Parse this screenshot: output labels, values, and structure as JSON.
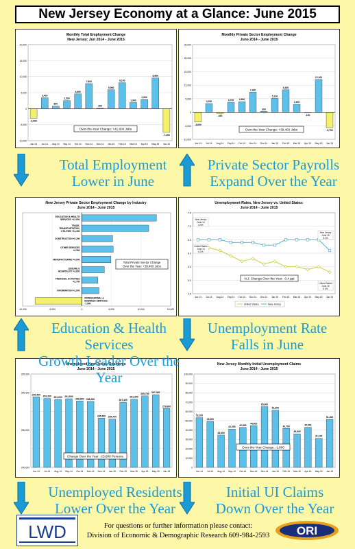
{
  "header": {
    "title": "New Jersey Economy at a Glance: June 2015"
  },
  "captions": {
    "p1": [
      "Total Employment",
      "Lower in June"
    ],
    "p2": [
      "Private Sector Payrolls",
      "Expand Over the Year"
    ],
    "p3": [
      "Education & Health Services",
      "Growth Leader Over the Year"
    ],
    "p4": [
      "Unemployment Rate",
      "Falls in June"
    ],
    "p5": [
      "Unemployed Residents",
      "Lower Over the Year"
    ],
    "p6": [
      "Initial UI Claims",
      "Down Over the Year"
    ]
  },
  "footer": {
    "line1": "For questions or further information please contact:",
    "line2": "Division of Economic & Demographic Research 609-984-2593",
    "logo_left": "LWD",
    "logo_right": "ORI"
  },
  "colors": {
    "bar": "#5bc0ea",
    "highlight": "#f4f06a",
    "us": "#c8c82a",
    "nj": "#3aa8d8",
    "caption": "#1a9bd6",
    "background": "#fdf7a8"
  },
  "chart_data": [
    {
      "type": "bar",
      "title": "Monthly Total Employment Change",
      "subtitle": "New Jersey: Jun 2014 - June 2015",
      "categories": [
        "Jun-14",
        "Jul-14",
        "Aug-14",
        "Sep-14",
        "Oct-14",
        "Nov-14",
        "Dec-14",
        "Jan-15",
        "Feb-15",
        "Mar-15",
        "Apr-15",
        "May-15",
        "Jun-15"
      ],
      "values": [
        -3000,
        3400,
        800,
        2500,
        4600,
        7800,
        200,
        5900,
        8100,
        1900,
        2900,
        9600,
        -7400
      ],
      "labels": [
        "-3,000",
        "3,400",
        "800",
        "2,500",
        "4,600",
        "7,800",
        "200",
        "5,900",
        "8,100",
        "1,900",
        "2,900",
        "9,600",
        "-7,400"
      ],
      "yticks": [
        -10000,
        -5000,
        0,
        5000,
        10000,
        15000,
        20000
      ],
      "ytick_labels": [
        "-10,000",
        "-5,000",
        "0",
        "5,000",
        "10,000",
        "15,000",
        "20,000"
      ],
      "ylim": [
        -10000,
        20000
      ],
      "annotation": "Over-the-Year Change: +41,600 Jobs"
    },
    {
      "type": "bar",
      "title": "Monthly Private Sector Employment Change",
      "subtitle": "June 2014 - June 2015",
      "categories": [
        "Jun-14",
        "Jul-14",
        "Aug-14",
        "Sep-14",
        "Oct-14",
        "Nov-14",
        "Dec-14",
        "Jan-15",
        "Feb-15",
        "Mar-15",
        "Apr-15",
        "May-15",
        "Jun-15"
      ],
      "values": [
        -3600,
        3200,
        -400,
        3700,
        3900,
        7400,
        300,
        5100,
        8300,
        2900,
        -100,
        12100,
        -5700
      ],
      "labels": [
        "-3,600",
        "3,200",
        "-400",
        "3,700",
        "3,900",
        "7,400",
        "300",
        "5,100",
        "8,300",
        "2,900",
        "-100",
        "12,100",
        "-5,700"
      ],
      "yticks": [
        -10000,
        -5000,
        0,
        5000,
        10000,
        15000,
        20000,
        25000
      ],
      "ytick_labels": [
        "-10,000",
        "-5,000",
        "0",
        "5,000",
        "10,000",
        "15,000",
        "20,000",
        "25,000"
      ],
      "ylim": [
        -10000,
        25000
      ],
      "annotation": "Over-the-Year Change: +39,400 Jobs"
    },
    {
      "type": "bar",
      "orientation": "horizontal",
      "title": "New Jersey Private Sector Employment Change by Industry",
      "subtitle": "June 2014 - June 2015",
      "categories": [
        "EDUCATION & HEALTH SERVICES +12,600",
        "TRADE, TRANSPORTATION, UTILITIES +11,300",
        "CONSTRUCTION +5,200",
        "OTHER SERVICES +5,300",
        "MANUFACTURING +4,900",
        "LEISURE & HOSPITALITY +3,800",
        "FINANCIAL ACTIVITIES +2,700",
        "INFORMATION +2,900",
        "PROFESSIONAL & BUSINESS SERVICES -7,900"
      ],
      "values": [
        12600,
        11300,
        5200,
        5300,
        4900,
        3800,
        2700,
        2900,
        -7900
      ],
      "xticks": [
        -10000,
        -5000,
        0,
        5000,
        10000,
        15000
      ],
      "xtick_labels": [
        "-10,000",
        "-5,000",
        "0",
        "5,000",
        "10,000",
        "15,000"
      ],
      "xlim": [
        -10000,
        15000
      ],
      "annotation": [
        "Total Private Sector Change",
        "Over the Year: +39,400 Jobs"
      ]
    },
    {
      "type": "line",
      "title": "Unemployment Rates, New Jersey vs. United States:",
      "subtitle": "June 2014 - June 2015",
      "categories": [
        "Jun-14",
        "Jul-14",
        "Aug-14",
        "Sep-14",
        "Oct-14",
        "Nov-14",
        "Dec-14",
        "Jan-15",
        "Feb-15",
        "Mar-15",
        "Apr-15",
        "May-15",
        "Jun-15"
      ],
      "series": [
        {
          "name": "United States",
          "values": [
            6.1,
            6.2,
            6.1,
            5.9,
            5.7,
            5.8,
            5.6,
            5.7,
            5.5,
            5.5,
            5.4,
            5.5,
            5.3
          ]
        },
        {
          "name": "New Jersey",
          "values": [
            6.5,
            6.5,
            6.5,
            6.4,
            6.4,
            6.4,
            6.3,
            6.3,
            6.5,
            6.5,
            6.5,
            6.5,
            6.1
          ]
        }
      ],
      "yticks": [
        4.5,
        5.0,
        5.5,
        6.0,
        6.5,
        7.0,
        7.5
      ],
      "ytick_labels": [
        "4.5",
        "5.0",
        "5.5",
        "6.0",
        "6.5",
        "7.0",
        "7.5"
      ],
      "ylim": [
        4.5,
        7.5
      ],
      "point_labels": [
        [
          "New Jersey",
          "June 14",
          "6.5%"
        ],
        [
          "United States",
          "June 14",
          "6.1%"
        ],
        [
          "New Jersey",
          "June 15",
          "6.1%"
        ],
        [
          "United States",
          "June 15",
          "5.3%"
        ]
      ],
      "annotation": "N.J. Change Over the Year: -0.4 ppt"
    },
    {
      "type": "bar",
      "title": "Unemployed New Jersey Residents",
      "subtitle": "June 2014 - June 2015",
      "categories": [
        "Jun-14",
        "Jul-14",
        "Aug-14",
        "Sep-14",
        "Oct-14",
        "Nov-14",
        "Dec-14",
        "Jan-15",
        "Feb-15",
        "Mar-15",
        "Apr-15",
        "May-15",
        "Jun-15"
      ],
      "values": [
        294400,
        292200,
        291000,
        291900,
        288900,
        288300,
        265900,
        264700,
        287300,
        291300,
        295700,
        297300,
        278800
      ],
      "labels": [
        "294,400",
        "292,200",
        "291,000",
        "291,900",
        "288,900",
        "288,300",
        "265,900",
        "264,700",
        "287,300",
        "291,300",
        "295,700",
        "297,300",
        "278,800"
      ],
      "yticks": [
        200000,
        225000,
        250000,
        275000,
        300000,
        325000
      ],
      "ytick_labels": [
        "200,000",
        "",
        "250,000",
        "",
        "300,000",
        "325,000"
      ],
      "ylim": [
        200000,
        325000
      ],
      "annotation": "Change Over the Year: -15,600 Persons"
    },
    {
      "type": "bar",
      "title": "New Jersey Monthly Initial Unemployment Claims",
      "subtitle": "June 2014 - June 2015",
      "categories": [
        "Jun-14",
        "Jul-14",
        "Aug-14",
        "Sep-14",
        "Oct-14",
        "Nov-14",
        "Dec-14",
        "Jan-15",
        "Feb-15",
        "Mar-15",
        "Apr-15",
        "May-15",
        "Jun-15"
      ],
      "values": [
        53200,
        49300,
        34600,
        41000,
        42800,
        44600,
        65000,
        61300,
        41700,
        35900,
        42900,
        31100,
        51400
      ],
      "labels": [
        "53,200",
        "49,300",
        "34,600",
        "41,000",
        "42,800",
        "44,600",
        "65,000",
        "61,300",
        "41,700",
        "35,900",
        "42,900",
        "31,100",
        "51,400"
      ],
      "yticks": [
        0,
        10000,
        20000,
        30000,
        40000,
        50000,
        60000,
        70000,
        80000,
        90000,
        100000
      ],
      "ytick_labels": [
        "0",
        "10,000",
        "20,000",
        "30,000",
        "40,000",
        "50,000",
        "60,000",
        "70,000",
        "80,000",
        "90,000",
        "100,000"
      ],
      "ylim": [
        0,
        100000
      ],
      "annotation": "Over-the-Year Change: -1,800"
    }
  ]
}
